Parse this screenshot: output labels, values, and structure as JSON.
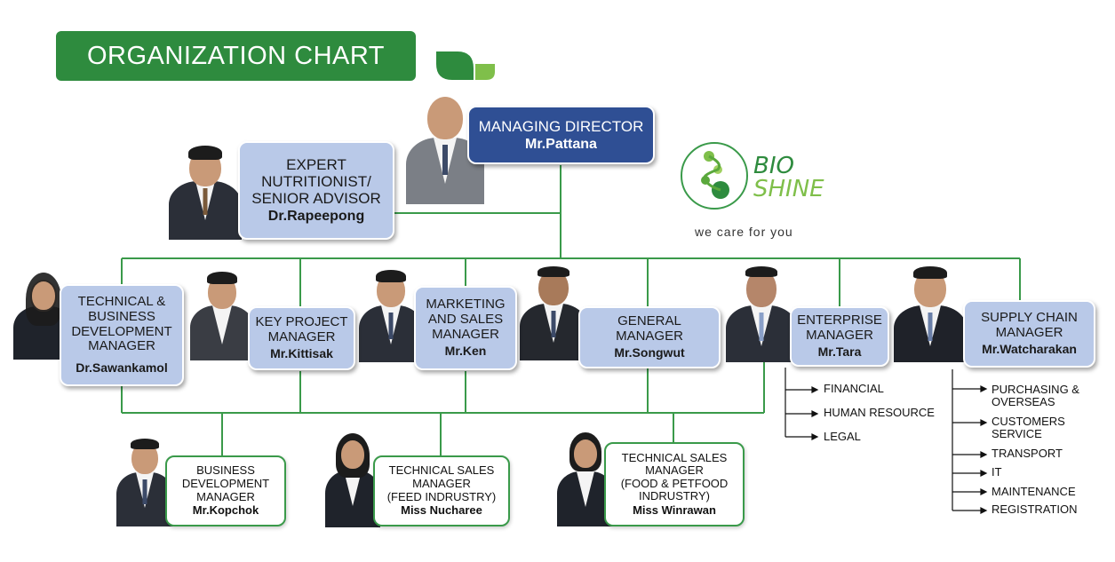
{
  "title": "ORGANIZATION CHART",
  "logo": {
    "name_line1": "BIO",
    "name_line2": "SHINE",
    "tagline": "we care for you"
  },
  "top": {
    "md": {
      "role": "MANAGING DIRECTOR",
      "name": "Mr.Pattana"
    },
    "advisor": {
      "role_lines": [
        "EXPERT",
        "NUTRITIONIST/",
        "SENIOR ADVISOR"
      ],
      "name": "Dr.Rapeepong"
    }
  },
  "managers": [
    {
      "role_lines": [
        "TECHNICAL &",
        "BUSINESS",
        "DEVELOPMENT",
        "MANAGER"
      ],
      "name": "Dr.Sawankamol"
    },
    {
      "role_lines": [
        "KEY PROJECT",
        "MANAGER"
      ],
      "name": "Mr.Kittisak"
    },
    {
      "role_lines": [
        "MARKETING",
        "AND SALES",
        "MANAGER"
      ],
      "name": "Mr.Ken"
    },
    {
      "role_lines": [
        "GENERAL",
        "MANAGER"
      ],
      "name": "Mr.Songwut"
    },
    {
      "role_lines": [
        "ENTERPRISE",
        "MANAGER"
      ],
      "name": "Mr.Tara"
    },
    {
      "role_lines": [
        "SUPPLY CHAIN",
        "MANAGER"
      ],
      "name": "Mr.Watcharakan"
    }
  ],
  "staff": [
    {
      "role_lines": [
        "BUSINESS",
        "DEVELOPMENT",
        "MANAGER"
      ],
      "name": "Mr.Kopchok"
    },
    {
      "role_lines": [
        "TECHNICAL SALES",
        "MANAGER",
        "(FEED INDRUSTRY)"
      ],
      "name": "Miss Nucharee"
    },
    {
      "role_lines": [
        "TECHNICAL SALES",
        "MANAGER",
        "(FOOD & PETFOOD",
        "INDRUSTRY)"
      ],
      "name": "Miss Winrawan"
    }
  ],
  "enterprise_units": [
    "FINANCIAL",
    "HUMAN RESOURCE",
    "LEGAL"
  ],
  "supply_chain_units": [
    [
      "PURCHASING &",
      "OVERSEAS"
    ],
    [
      "CUSTOMERS",
      "SERVICE"
    ],
    [
      "TRANSPORT"
    ],
    [
      "IT"
    ],
    [
      "MAINTENANCE"
    ],
    [
      "REGISTRATION"
    ]
  ],
  "colors": {
    "banner": "#2e8b3e",
    "line": "#3a9a4a",
    "box": "#b9c9e8",
    "md_box": "#2f4f94"
  }
}
